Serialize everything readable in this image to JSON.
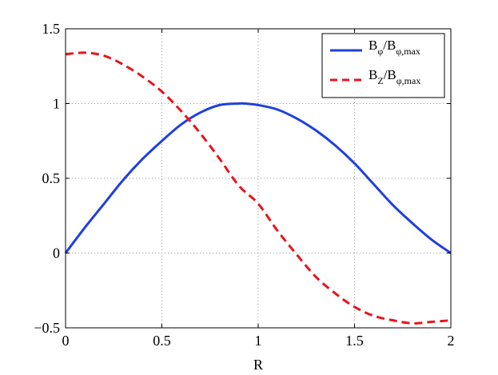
{
  "chart_data": {
    "type": "line",
    "title": "",
    "xlabel": "R",
    "ylabel": "",
    "xlim": [
      0,
      2
    ],
    "ylim": [
      -0.5,
      1.5
    ],
    "xticks": [
      0,
      0.5,
      1,
      1.5,
      2
    ],
    "yticks": [
      -0.5,
      0,
      0.5,
      1,
      1.5
    ],
    "xtick_labels": [
      "0",
      "0.5",
      "1",
      "1.5",
      "2"
    ],
    "ytick_labels": [
      "−0.5",
      "0",
      "0.5",
      "1",
      "1.5"
    ],
    "grid": true,
    "legend_position": "top-right",
    "series": [
      {
        "name": "Bφ/Bφ,max",
        "legend": {
          "main": "B",
          "sub1": "φ",
          "mid": "/B",
          "sub2": "φ,max"
        },
        "color": "#1f3fe0",
        "dash": "solid",
        "x": [
          0,
          0.1,
          0.2,
          0.3,
          0.4,
          0.5,
          0.6,
          0.7,
          0.8,
          0.9,
          0.93,
          1.0,
          1.1,
          1.2,
          1.3,
          1.4,
          1.5,
          1.6,
          1.7,
          1.8,
          1.9,
          2.0
        ],
        "y": [
          0,
          0.17,
          0.33,
          0.49,
          0.63,
          0.75,
          0.86,
          0.94,
          0.99,
          1.0,
          1.0,
          0.99,
          0.96,
          0.9,
          0.82,
          0.72,
          0.6,
          0.46,
          0.32,
          0.2,
          0.09,
          0
        ]
      },
      {
        "name": "BZ/Bφ,max",
        "legend": {
          "main": "B",
          "sub1": "Z",
          "mid": "/B",
          "sub2": "φ,max"
        },
        "color": "#e8141c",
        "dash": "dashed",
        "x": [
          0,
          0.1,
          0.2,
          0.3,
          0.4,
          0.5,
          0.6,
          0.7,
          0.8,
          0.9,
          1.0,
          1.1,
          1.2,
          1.3,
          1.4,
          1.5,
          1.6,
          1.7,
          1.8,
          1.9,
          2.0
        ],
        "y": [
          1.33,
          1.34,
          1.32,
          1.26,
          1.18,
          1.08,
          0.95,
          0.8,
          0.63,
          0.45,
          0.33,
          0.15,
          -0.01,
          -0.16,
          -0.27,
          -0.36,
          -0.42,
          -0.45,
          -0.47,
          -0.46,
          -0.45
        ]
      }
    ]
  }
}
